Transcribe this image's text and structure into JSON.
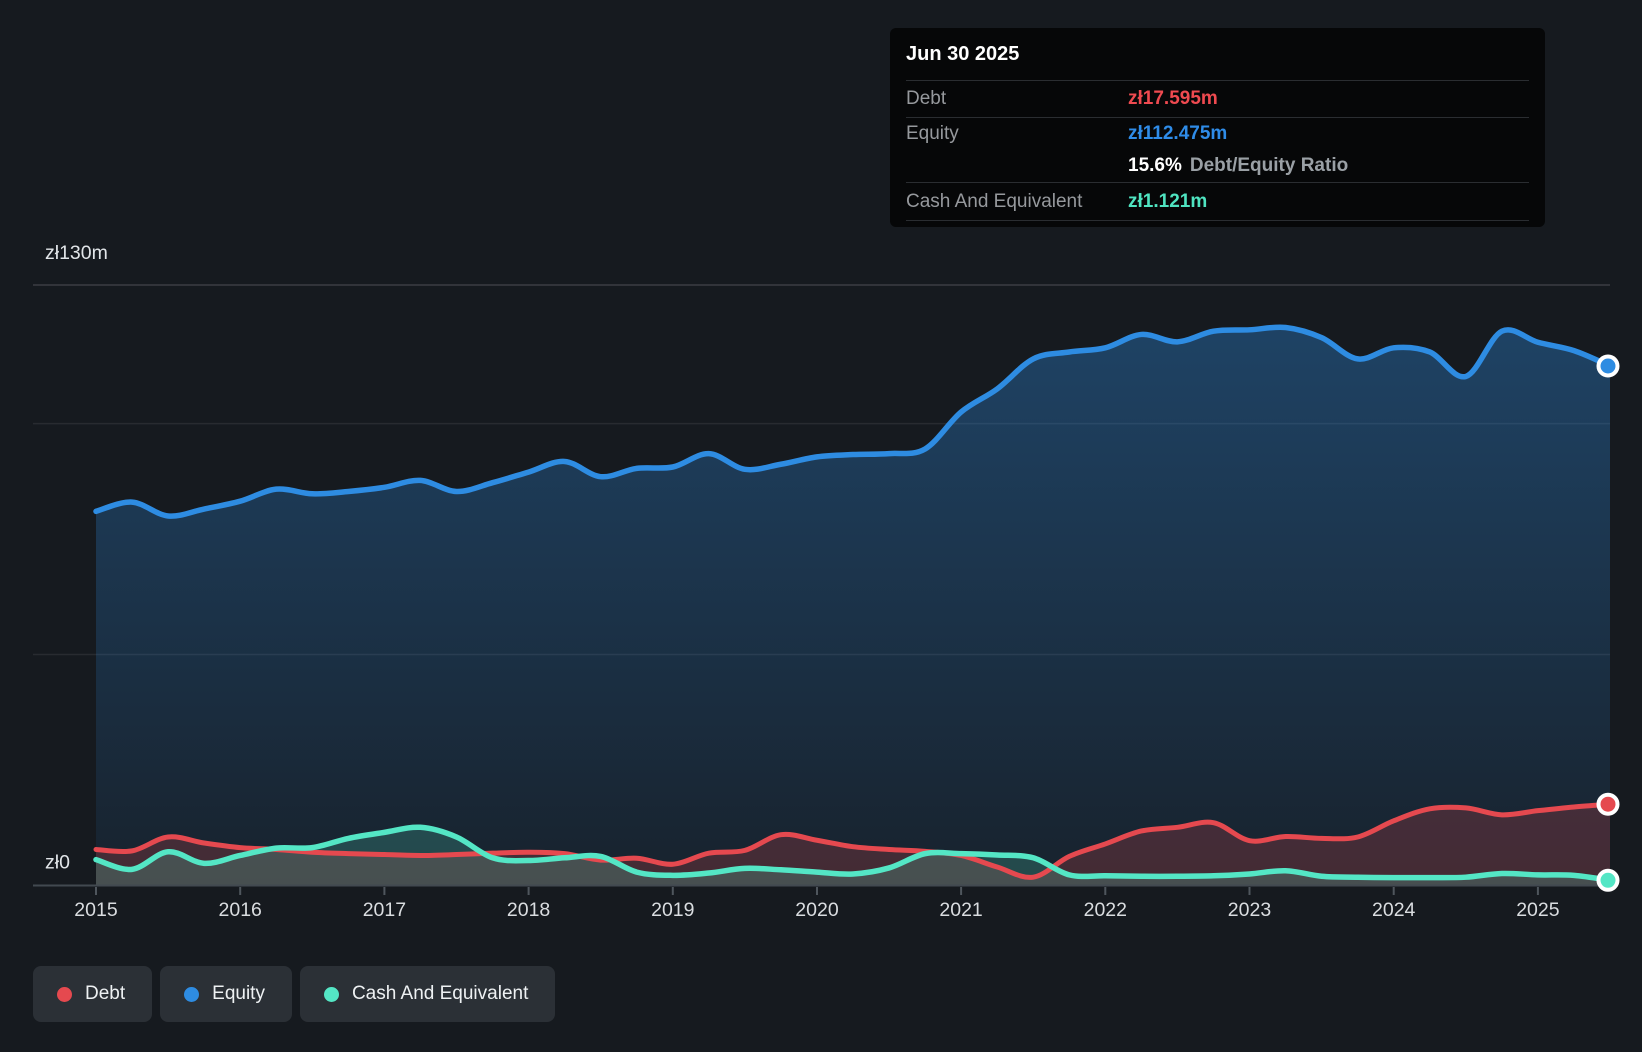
{
  "page": {
    "background": "#161a1f"
  },
  "tooltip": {
    "title": "Jun 30 2025",
    "rows": {
      "debt": {
        "label": "Debt",
        "value": "zł17.595m",
        "color": "#ef4a50"
      },
      "equity": {
        "label": "Equity",
        "value": "zł112.475m",
        "color": "#2f8ce8"
      },
      "ratio": {
        "value": "15.6%",
        "label": "Debt/Equity Ratio"
      },
      "cash": {
        "label": "Cash And Equivalent",
        "value": "zł1.121m",
        "color": "#4fe4c1"
      }
    }
  },
  "legend": {
    "items": [
      {
        "id": "debt",
        "label": "Debt",
        "color": "#e5494f"
      },
      {
        "id": "equity",
        "label": "Equity",
        "color": "#2e8ce2"
      },
      {
        "id": "cash",
        "label": "Cash And Equivalent",
        "color": "#54e6c5"
      }
    ]
  },
  "axes": {
    "y_labels": [
      {
        "value": 130,
        "label": "zł130m"
      },
      {
        "value": 0,
        "label": "zł0"
      }
    ],
    "x_ticks": [
      "2015",
      "2016",
      "2017",
      "2018",
      "2019",
      "2020",
      "2021",
      "2022",
      "2023",
      "2024",
      "2025"
    ]
  },
  "chart_data": {
    "type": "area",
    "x_unit": "decimal_year",
    "xlim": [
      2015,
      2025.5
    ],
    "ylim": [
      0,
      130
    ],
    "gridlines_m": [
      130,
      100,
      50,
      0
    ],
    "grid": true,
    "legend_position": "bottom-left",
    "hover_point": {
      "date": "Jun 30 2025",
      "debt_m": 17.595,
      "equity_m": 112.475,
      "cash_m": 1.121,
      "debt_equity_ratio_pct": 15.6
    },
    "x": [
      2015.0,
      2015.25,
      2015.5,
      2015.75,
      2016.0,
      2016.25,
      2016.5,
      2016.75,
      2017.0,
      2017.25,
      2017.5,
      2017.75,
      2018.0,
      2018.25,
      2018.5,
      2018.75,
      2019.0,
      2019.25,
      2019.5,
      2019.75,
      2020.0,
      2020.25,
      2020.5,
      2020.75,
      2021.0,
      2021.25,
      2021.5,
      2021.75,
      2022.0,
      2022.25,
      2022.5,
      2022.75,
      2023.0,
      2023.25,
      2023.5,
      2023.75,
      2024.0,
      2024.25,
      2024.5,
      2024.75,
      2025.0,
      2025.25,
      2025.5
    ],
    "series": [
      {
        "name": "Equity",
        "color": "#2e8ce2",
        "values": [
          81,
          83,
          80,
          81.5,
          83.2,
          85.8,
          84.8,
          85.3,
          86.2,
          87.7,
          85.3,
          87.2,
          89.5,
          91.8,
          88.5,
          90.3,
          90.6,
          93.5,
          90.1,
          91.2,
          92.8,
          93.3,
          93.5,
          94.5,
          102.5,
          107.5,
          114,
          115.5,
          116.4,
          119.3,
          117.7,
          120,
          120.3,
          120.8,
          118.6,
          114,
          116.4,
          115.5,
          110.2,
          120,
          117.6,
          115.8,
          112.475
        ]
      },
      {
        "name": "Debt",
        "color": "#e5494f",
        "values": [
          7.8,
          7.5,
          10.5,
          9.2,
          8.2,
          7.8,
          7.2,
          6.9,
          6.7,
          6.5,
          6.7,
          7.0,
          7.2,
          6.9,
          5.5,
          5.9,
          4.6,
          7.0,
          7.6,
          11.0,
          9.8,
          8.4,
          7.8,
          7.4,
          6.5,
          4.0,
          1.8,
          6.3,
          9.0,
          11.8,
          12.6,
          13.6,
          9.7,
          10.6,
          10.2,
          10.5,
          14.0,
          16.6,
          16.8,
          15.3,
          16.2,
          17.0,
          17.595
        ]
      },
      {
        "name": "Cash And Equivalent",
        "color": "#54e6c5",
        "values": [
          5.6,
          3.5,
          7.3,
          4.8,
          6.5,
          8.1,
          8.2,
          10.2,
          11.5,
          12.6,
          10.5,
          6.0,
          5.4,
          6.0,
          6.3,
          2.9,
          2.2,
          2.7,
          3.7,
          3.4,
          2.9,
          2.5,
          3.8,
          6.9,
          6.9,
          6.6,
          6.0,
          2.3,
          2.1,
          2.0,
          2.0,
          2.1,
          2.5,
          3.2,
          2.0,
          1.8,
          1.7,
          1.7,
          1.8,
          2.6,
          2.3,
          2.2,
          1.121
        ]
      }
    ]
  }
}
